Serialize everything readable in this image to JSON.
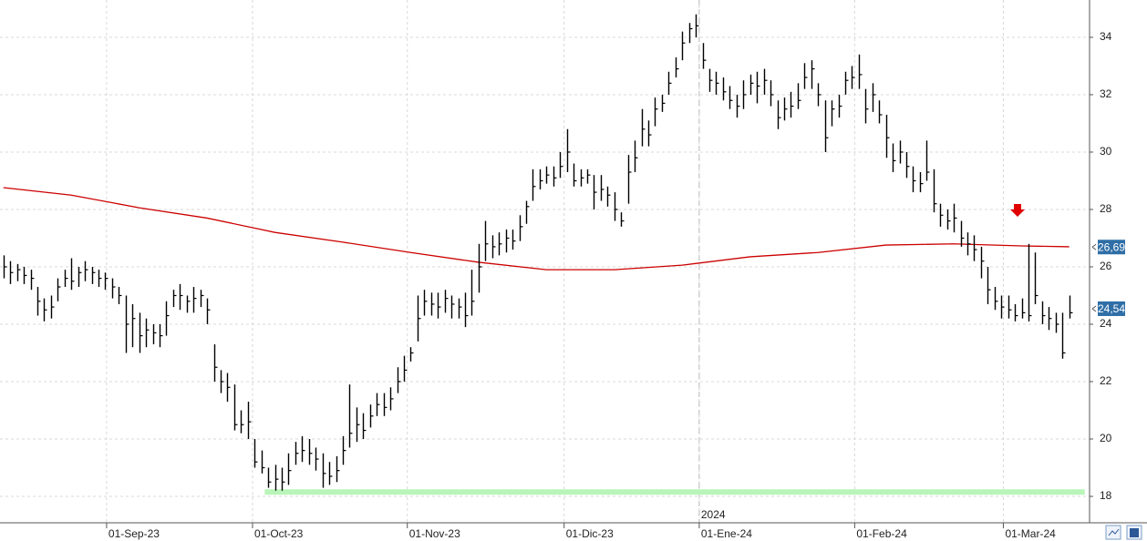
{
  "chart_data": {
    "type": "ohlc",
    "xlim": [
      -0.5,
      160
    ],
    "ylim": [
      17.08,
      35.3
    ],
    "yticks": [
      18,
      20,
      22,
      24,
      26,
      28,
      30,
      32,
      34
    ],
    "xticks": [
      {
        "value": 15.2,
        "label": "01-Sep-23"
      },
      {
        "value": 36.7,
        "label": "01-Oct-23"
      },
      {
        "value": 59.5,
        "label": "01-Nov-23"
      },
      {
        "value": 82.6,
        "label": "01-Dic-23"
      },
      {
        "value": 102.5,
        "label": "01-Ene-24"
      },
      {
        "value": 125.4,
        "label": "01-Feb-24"
      },
      {
        "value": 147.3,
        "label": "01-Mar-24"
      }
    ],
    "year_marker": {
      "value": 102.5,
      "label": "2024"
    },
    "grid": true,
    "bar_color": "#000000",
    "high": [
      26.4,
      26.2,
      26.1,
      26.0,
      25.9,
      25.3,
      24.9,
      25.0,
      25.6,
      25.9,
      26.3,
      26.0,
      26.2,
      26.0,
      25.9,
      25.8,
      25.6,
      25.3,
      25.0,
      24.7,
      24.4,
      24.2,
      24.0,
      24.0,
      24.8,
      25.2,
      25.4,
      25.0,
      25.3,
      25.2,
      24.9,
      23.3,
      22.4,
      22.3,
      21.9,
      21.0,
      21.3,
      20.0,
      19.6,
      19.0,
      19.1,
      19.0,
      19.5,
      19.9,
      20.1,
      20.0,
      19.7,
      19.5,
      19.2,
      19.4,
      20.1,
      21.9,
      21.1,
      20.9,
      21.2,
      21.6,
      21.6,
      21.8,
      22.5,
      22.9,
      23.2,
      25.0,
      25.2,
      25.1,
      25.1,
      25.2,
      25.0,
      24.9,
      25.1,
      25.9,
      26.8,
      27.6,
      27.1,
      27.2,
      27.3,
      27.3,
      27.8,
      28.3,
      29.4,
      29.4,
      29.5,
      29.5,
      30.0,
      30.8,
      29.6,
      29.4,
      29.4,
      29.2,
      29.2,
      28.8,
      28.6,
      27.9,
      29.9,
      30.4,
      31.5,
      31.1,
      31.9,
      32.0,
      32.8,
      33.3,
      34.2,
      34.5,
      34.8,
      33.8,
      32.9,
      32.8,
      32.6,
      32.3,
      32.0,
      32.5,
      32.7,
      32.8,
      32.9,
      32.5,
      31.8,
      31.9,
      32.1,
      32.4,
      33.1,
      33.2,
      32.4,
      31.8,
      31.8,
      32.0,
      32.8,
      33.0,
      33.4,
      32.2,
      32.4,
      31.8,
      31.3,
      30.3,
      30.4,
      30.0,
      29.5,
      29.3,
      30.4,
      29.4,
      28.2,
      28.0,
      28.2,
      27.6,
      27.2,
      27.1,
      26.7,
      26.0,
      25.3,
      25.0,
      25.0,
      24.7,
      24.9,
      26.8,
      26.5,
      24.8,
      24.6,
      24.4,
      24.4,
      25.0
    ],
    "low": [
      25.6,
      25.4,
      25.5,
      25.4,
      25.2,
      24.3,
      24.1,
      24.2,
      24.8,
      25.3,
      25.2,
      25.3,
      25.5,
      25.4,
      25.3,
      25.2,
      24.9,
      24.7,
      23.0,
      23.2,
      23.0,
      23.2,
      23.3,
      23.2,
      23.6,
      24.6,
      24.5,
      24.4,
      24.4,
      24.6,
      24.0,
      22.0,
      21.6,
      21.3,
      20.3,
      20.2,
      20.0,
      19.0,
      18.8,
      18.3,
      18.2,
      18.2,
      18.4,
      19.1,
      19.2,
      19.1,
      18.9,
      18.3,
      18.4,
      18.5,
      19.1,
      19.7,
      19.9,
      20.0,
      20.4,
      20.8,
      20.8,
      21.0,
      21.6,
      22.0,
      22.7,
      23.4,
      24.3,
      24.3,
      24.2,
      24.4,
      24.2,
      24.2,
      23.9,
      24.3,
      25.1,
      26.2,
      26.3,
      26.4,
      26.5,
      26.6,
      26.9,
      27.5,
      28.3,
      28.7,
      28.9,
      28.8,
      29.1,
      29.3,
      28.8,
      28.8,
      28.9,
      28.0,
      28.3,
      28.1,
      27.6,
      27.4,
      28.2,
      29.3,
      30.2,
      30.2,
      30.9,
      31.4,
      32.0,
      32.6,
      33.2,
      33.8,
      34.0,
      32.9,
      32.1,
      32.0,
      31.8,
      31.5,
      31.2,
      31.5,
      32.0,
      31.7,
      32.0,
      31.6,
      30.8,
      31.1,
      31.2,
      31.5,
      32.2,
      32.2,
      31.6,
      30.0,
      30.9,
      31.2,
      32.0,
      32.2,
      32.2,
      31.0,
      31.4,
      31.0,
      29.8,
      29.3,
      29.6,
      29.1,
      28.6,
      28.6,
      29.0,
      27.9,
      27.4,
      27.3,
      27.2,
      26.7,
      26.4,
      26.2,
      25.6,
      24.7,
      24.5,
      24.2,
      24.2,
      24.1,
      24.2,
      24.1,
      24.7,
      24.0,
      23.8,
      23.7,
      22.8,
      24.2
    ],
    "close": [
      26.0,
      25.8,
      25.9,
      25.7,
      25.6,
      24.8,
      24.5,
      24.6,
      25.3,
      25.6,
      25.5,
      25.8,
      25.9,
      25.8,
      25.6,
      25.6,
      25.3,
      25.0,
      24.0,
      24.2,
      23.6,
      23.8,
      23.7,
      23.6,
      24.3,
      25.0,
      25.0,
      24.8,
      24.9,
      25.0,
      24.5,
      22.5,
      22.0,
      21.8,
      20.5,
      20.5,
      20.6,
      19.2,
      19.0,
      18.5,
      18.6,
      18.5,
      18.9,
      19.5,
      19.6,
      19.5,
      19.3,
      18.8,
      18.7,
      18.9,
      19.6,
      20.2,
      20.5,
      20.3,
      20.8,
      21.2,
      21.1,
      21.4,
      22.0,
      22.4,
      23.0,
      24.2,
      24.8,
      24.7,
      24.6,
      24.9,
      24.7,
      24.6,
      24.3,
      24.8,
      26.0,
      26.8,
      26.7,
      26.8,
      27.0,
      26.9,
      27.4,
      28.1,
      28.8,
      29.0,
      29.2,
      29.1,
      29.5,
      30.0,
      29.0,
      29.1,
      29.2,
      28.6,
      28.7,
      28.5,
      28.0,
      27.6,
      29.3,
      29.8,
      30.8,
      30.6,
      31.5,
      31.7,
      32.4,
      32.9,
      33.8,
      34.3,
      34.4,
      33.2,
      32.5,
      32.4,
      32.1,
      31.8,
      31.6,
      32.0,
      32.4,
      32.3,
      32.5,
      32.0,
      31.2,
      31.5,
      31.6,
      31.8,
      32.6,
      32.9,
      32.0,
      30.5,
      31.5,
      31.6,
      32.5,
      32.6,
      32.7,
      31.5,
      32.0,
      31.3,
      30.5,
      29.7,
      30.0,
      29.5,
      29.0,
      28.9,
      29.3,
      28.2,
      27.8,
      27.6,
      27.7,
      27.0,
      26.8,
      26.6,
      26.2,
      25.2,
      24.8,
      24.6,
      24.5,
      24.3,
      24.4,
      24.3,
      25.0,
      24.3,
      24.2,
      24.0,
      23.0,
      24.4
    ],
    "moving_average": {
      "color": "#cc0000",
      "x": [
        0,
        10,
        20,
        30,
        40,
        50,
        60,
        70,
        80,
        90,
        100,
        110,
        120,
        130,
        140,
        150,
        157
      ],
      "values": [
        28.76,
        28.5,
        28.06,
        27.7,
        27.2,
        26.86,
        26.5,
        26.16,
        25.9,
        25.9,
        26.06,
        26.35,
        26.5,
        26.76,
        26.8,
        26.73,
        26.7
      ]
    },
    "support": {
      "color": "#b9f5b9",
      "value": 18.15,
      "x": [
        38.5,
        159.3
      ]
    },
    "price_labels": [
      {
        "value": 26.69,
        "label": "26,69"
      },
      {
        "value": 24.54,
        "label": "24,54"
      }
    ],
    "price_label_color": "#2f6ea6"
  }
}
